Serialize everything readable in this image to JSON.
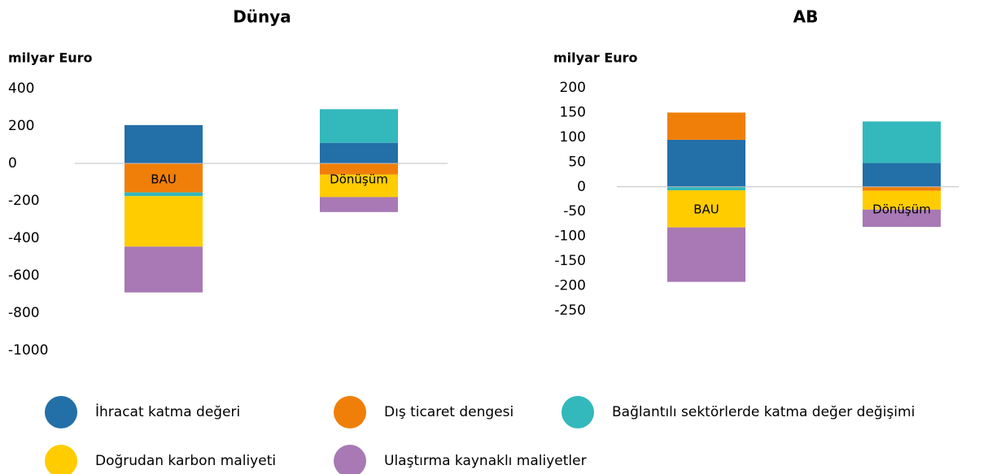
{
  "chart_data": [
    {
      "type": "stacked_bar",
      "title": "Dünya",
      "y_label": "milyar Euro",
      "categories": [
        "BAU",
        "Dönüşüm"
      ],
      "series": [
        {
          "name": "İhracat katma değeri",
          "color": "#236fa8",
          "values": [
            205,
            110
          ]
        },
        {
          "name": "Dış ticaret dengesi",
          "color": "#f07f09",
          "values": [
            -155,
            -60
          ]
        },
        {
          "name": "Bağlantılı sektörlerde katma değer değişimi",
          "color": "#33b8bc",
          "values": [
            -20,
            180
          ]
        },
        {
          "name": "Doğrudan karbon maliyeti",
          "color": "#ffcc00",
          "values": [
            -270,
            -120
          ]
        },
        {
          "name": "Ulaştırma kaynaklı maliyetler",
          "color": "#a879b5",
          "values": [
            -245,
            -80
          ]
        }
      ],
      "ylim": [
        -1000,
        400
      ],
      "yticks": [
        400,
        200,
        0,
        -200,
        -400,
        -600,
        -800,
        -1000
      ]
    },
    {
      "type": "stacked_bar",
      "title": "AB",
      "y_label": "milyar Euro",
      "categories": [
        "BAU",
        "Dönüşüm"
      ],
      "series": [
        {
          "name": "İhracat katma değeri",
          "color": "#236fa8",
          "values": [
            95,
            48
          ]
        },
        {
          "name": "Dış ticaret dengesi",
          "color": "#f07f09",
          "values": [
            55,
            -8
          ]
        },
        {
          "name": "Bağlantılı sektörlerde katma değer değişimi",
          "color": "#33b8bc",
          "values": [
            -7,
            84
          ]
        },
        {
          "name": "Doğrudan karbon maliyeti",
          "color": "#ffcc00",
          "values": [
            -75,
            -38
          ]
        },
        {
          "name": "Ulaştırma kaynaklı maliyetler",
          "color": "#a879b5",
          "values": [
            -110,
            -35
          ]
        }
      ],
      "ylim": [
        -250,
        200
      ],
      "yticks": [
        200,
        150,
        100,
        50,
        0,
        -50,
        -100,
        -150,
        -200,
        -250
      ]
    }
  ]
}
